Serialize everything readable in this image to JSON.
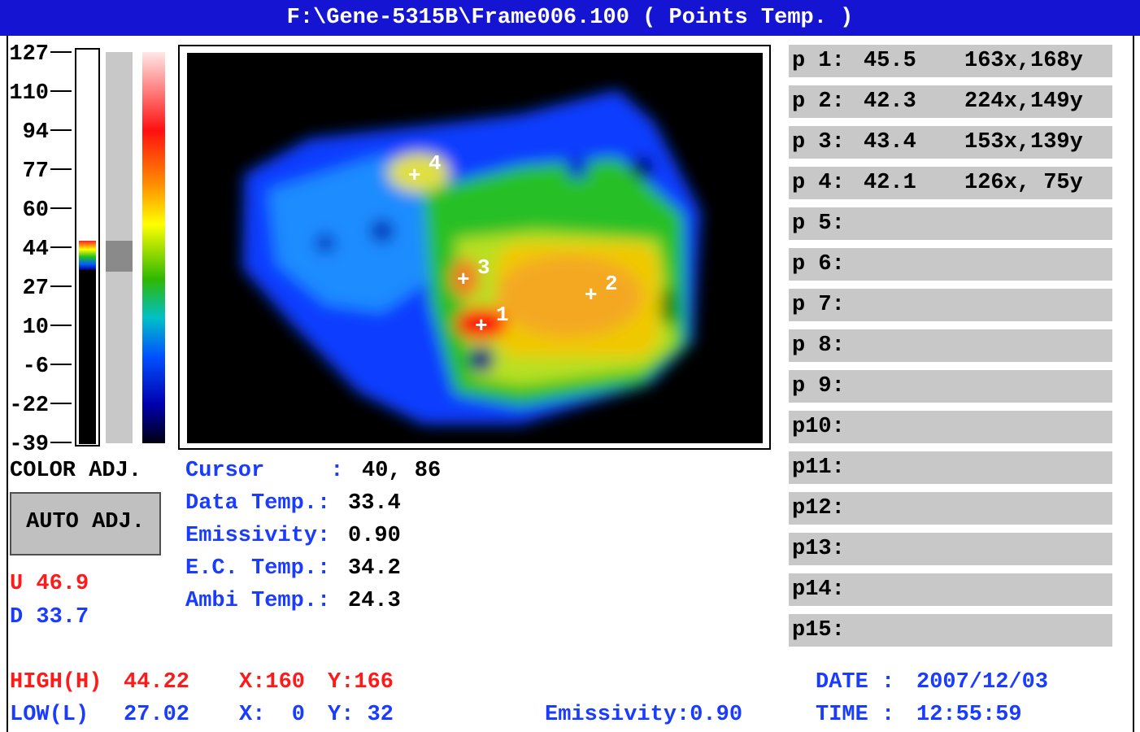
{
  "title": "F:\\Gene-5315B\\Frame006.100 ( Points Temp. )",
  "scale": [
    "127",
    "110",
    "94",
    "77",
    "60",
    "44",
    "27",
    "10",
    "-6",
    "-22",
    "-39"
  ],
  "image": {
    "markers": [
      "1",
      "2",
      "3",
      "4"
    ]
  },
  "points": [
    {
      "label": "p 1:",
      "temp": "45.5",
      "pos": "163x,168y"
    },
    {
      "label": "p 2:",
      "temp": "42.3",
      "pos": "224x,149y"
    },
    {
      "label": "p 3:",
      "temp": "43.4",
      "pos": "153x,139y"
    },
    {
      "label": "p 4:",
      "temp": "42.1",
      "pos": "126x, 75y"
    },
    {
      "label": "p 5:"
    },
    {
      "label": "p 6:"
    },
    {
      "label": "p 7:"
    },
    {
      "label": "p 8:"
    },
    {
      "label": "p 9:"
    },
    {
      "label": "p10:"
    },
    {
      "label": "p11:"
    },
    {
      "label": "p12:"
    },
    {
      "label": "p13:"
    },
    {
      "label": "p14:"
    },
    {
      "label": "p15:"
    }
  ],
  "color_adj": "COLOR ADJ.",
  "auto_adj": "AUTO ADJ.",
  "upper": "U 46.9",
  "lower": "D 33.7",
  "readout": [
    {
      "label": "Cursor     :",
      "value": "40, 86"
    },
    {
      "label": "Data Temp.:",
      "value": "33.4"
    },
    {
      "label": "Emissivity:",
      "value": "0.90"
    },
    {
      "label": "E.C. Temp.:",
      "value": "34.2"
    },
    {
      "label": "Ambi Temp.:",
      "value": "24.3"
    }
  ],
  "footer": {
    "high": {
      "label": "HIGH(H)",
      "value": "44.22",
      "x": "X:160",
      "y": "Y:166"
    },
    "low": {
      "label": "LOW(L)",
      "value": "27.02",
      "x": "X:  0",
      "y": "Y: 32"
    },
    "emissivity": "Emissivity:0.90",
    "date": {
      "label": "DATE :",
      "value": "2007/12/03"
    },
    "time": {
      "label": "TIME :",
      "value": "12:55:59"
    }
  }
}
